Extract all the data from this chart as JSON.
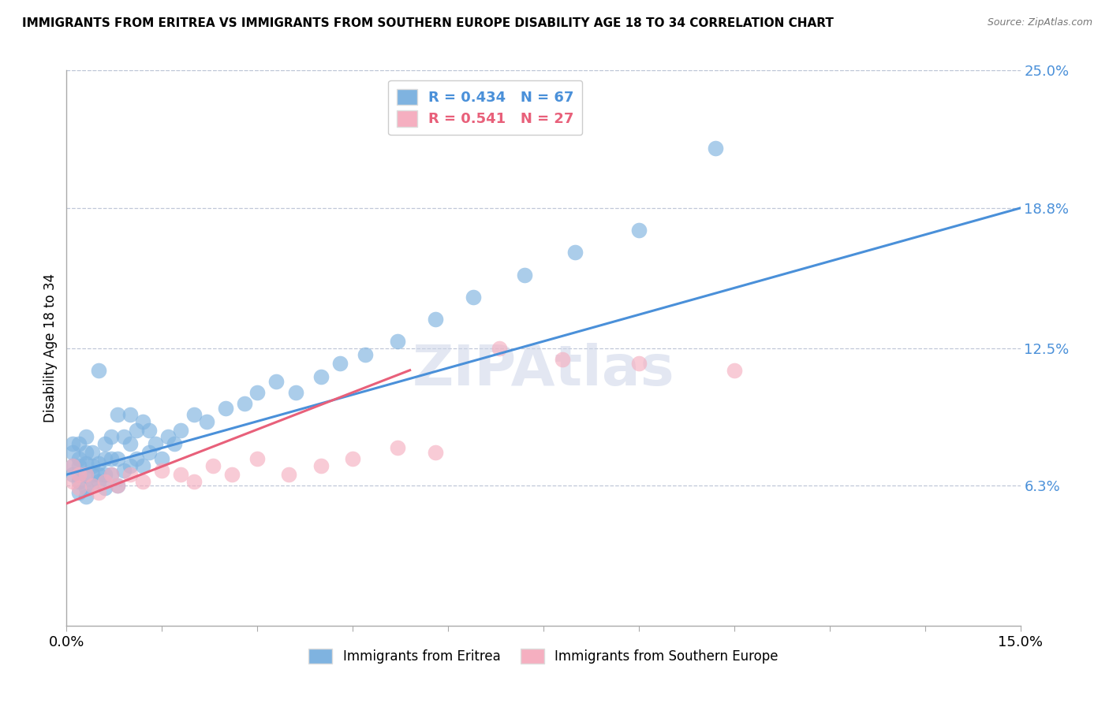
{
  "title": "IMMIGRANTS FROM ERITREA VS IMMIGRANTS FROM SOUTHERN EUROPE DISABILITY AGE 18 TO 34 CORRELATION CHART",
  "source_text": "Source: ZipAtlas.com",
  "ylabel": "Disability Age 18 to 34",
  "xlim": [
    0.0,
    0.15
  ],
  "ylim": [
    0.0,
    0.25
  ],
  "ytick_labels_right": [
    "6.3%",
    "12.5%",
    "18.8%",
    "25.0%"
  ],
  "yticks_right": [
    0.063,
    0.125,
    0.188,
    0.25
  ],
  "R_blue": 0.434,
  "N_blue": 67,
  "R_pink": 0.541,
  "N_pink": 27,
  "blue_color": "#7fb3e0",
  "pink_color": "#f5afc0",
  "line_blue": "#4a90d9",
  "line_pink": "#e8607a",
  "legend_label_blue": "Immigrants from Eritrea",
  "legend_label_pink": "Immigrants from Southern Europe",
  "blue_x": [
    0.001,
    0.001,
    0.001,
    0.001,
    0.002,
    0.002,
    0.002,
    0.002,
    0.002,
    0.002,
    0.003,
    0.003,
    0.003,
    0.003,
    0.003,
    0.003,
    0.004,
    0.004,
    0.004,
    0.004,
    0.005,
    0.005,
    0.005,
    0.005,
    0.006,
    0.006,
    0.006,
    0.006,
    0.007,
    0.007,
    0.007,
    0.008,
    0.008,
    0.008,
    0.009,
    0.009,
    0.01,
    0.01,
    0.01,
    0.011,
    0.011,
    0.012,
    0.012,
    0.013,
    0.013,
    0.014,
    0.015,
    0.016,
    0.017,
    0.018,
    0.02,
    0.022,
    0.025,
    0.028,
    0.03,
    0.033,
    0.036,
    0.04,
    0.043,
    0.047,
    0.052,
    0.058,
    0.064,
    0.072,
    0.08,
    0.09,
    0.102
  ],
  "blue_y": [
    0.068,
    0.072,
    0.078,
    0.082,
    0.06,
    0.065,
    0.068,
    0.072,
    0.075,
    0.082,
    0.058,
    0.062,
    0.068,
    0.073,
    0.078,
    0.085,
    0.063,
    0.068,
    0.072,
    0.078,
    0.065,
    0.068,
    0.073,
    0.115,
    0.062,
    0.068,
    0.075,
    0.082,
    0.068,
    0.075,
    0.085,
    0.063,
    0.075,
    0.095,
    0.07,
    0.085,
    0.072,
    0.082,
    0.095,
    0.075,
    0.088,
    0.072,
    0.092,
    0.078,
    0.088,
    0.082,
    0.075,
    0.085,
    0.082,
    0.088,
    0.095,
    0.092,
    0.098,
    0.1,
    0.105,
    0.11,
    0.105,
    0.112,
    0.118,
    0.122,
    0.128,
    0.138,
    0.148,
    0.158,
    0.168,
    0.178,
    0.215
  ],
  "pink_x": [
    0.001,
    0.001,
    0.002,
    0.002,
    0.003,
    0.004,
    0.005,
    0.006,
    0.007,
    0.008,
    0.01,
    0.012,
    0.015,
    0.018,
    0.02,
    0.023,
    0.026,
    0.03,
    0.035,
    0.04,
    0.045,
    0.052,
    0.058,
    0.068,
    0.078,
    0.09,
    0.105
  ],
  "pink_y": [
    0.065,
    0.072,
    0.062,
    0.068,
    0.068,
    0.063,
    0.06,
    0.065,
    0.068,
    0.063,
    0.068,
    0.065,
    0.07,
    0.068,
    0.065,
    0.072,
    0.068,
    0.075,
    0.068,
    0.072,
    0.075,
    0.08,
    0.078,
    0.125,
    0.12,
    0.118,
    0.115
  ]
}
